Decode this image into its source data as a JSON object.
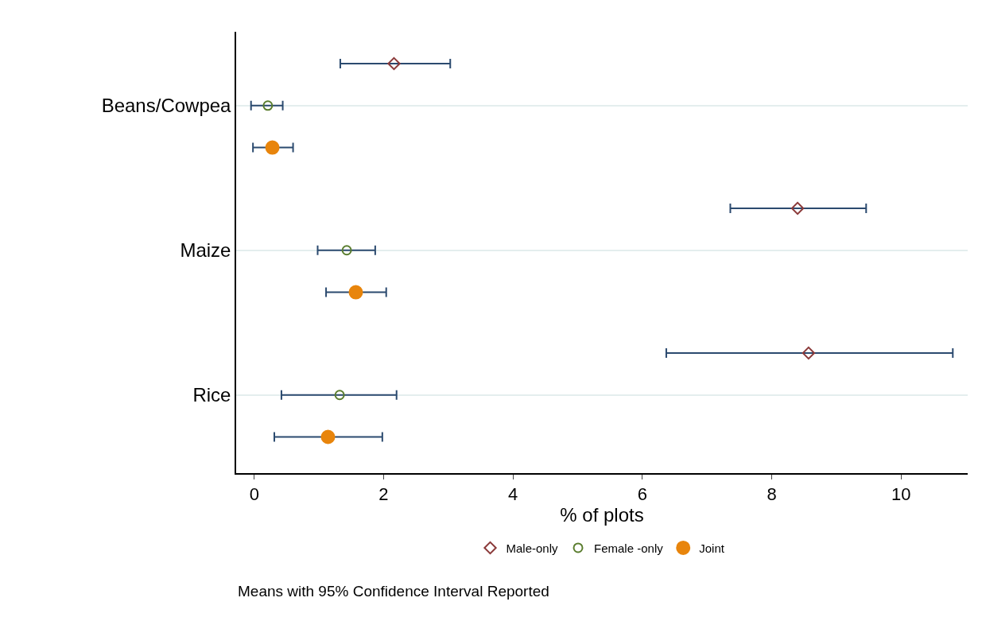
{
  "chart_data": {
    "type": "scatter",
    "orientation": "horizontal",
    "xlabel": "% of plots",
    "categories": [
      "Beans/Cowpea",
      "Maize",
      "Rice"
    ],
    "series": [
      {
        "name": "Male-only",
        "color": "#8b3a3a",
        "marker": "diamond",
        "values": [
          2.16,
          8.4,
          8.57
        ],
        "errors": [
          [
            1.33,
            3.03
          ],
          [
            7.36,
            9.46
          ],
          [
            6.37,
            10.8
          ]
        ]
      },
      {
        "name": "Female -only",
        "color": "#5a7d2e",
        "marker": "circle",
        "values": [
          0.21,
          1.43,
          1.32
        ],
        "errors": [
          [
            -0.05,
            0.44
          ],
          [
            0.98,
            1.87
          ],
          [
            0.42,
            2.2
          ]
        ]
      },
      {
        "name": "Joint",
        "color": "#e8850c",
        "marker": "circle",
        "values": [
          0.28,
          1.57,
          1.14
        ],
        "errors": [
          [
            -0.02,
            0.6
          ],
          [
            1.11,
            2.04
          ],
          [
            0.31,
            1.98
          ]
        ]
      }
    ],
    "xlim": [
      -0.28,
      11.03
    ],
    "xticks": [
      0,
      2,
      4,
      6,
      8,
      10
    ],
    "grid": "y",
    "legend": "bottom",
    "annotations": [
      "Means with 95% Confidence Interval Reported"
    ]
  }
}
